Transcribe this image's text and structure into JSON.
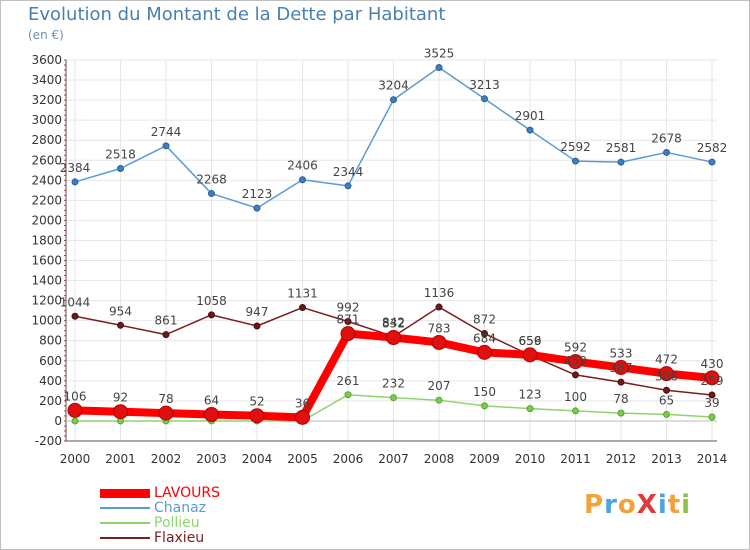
{
  "chart_data": {
    "type": "line",
    "title": "Evolution du Montant de la Dette par Habitant",
    "subtitle": "(en €)",
    "xlabel": "",
    "ylabel": "",
    "categories": [
      "2000",
      "2001",
      "2002",
      "2003",
      "2004",
      "2005",
      "2006",
      "2007",
      "2008",
      "2009",
      "2010",
      "2011",
      "2012",
      "2013",
      "2014"
    ],
    "ylim": [
      -200,
      3600
    ],
    "yticks": [
      -200,
      0,
      200,
      400,
      600,
      800,
      1000,
      1200,
      1400,
      1600,
      1800,
      2000,
      2200,
      2400,
      2600,
      2800,
      3000,
      3200,
      3400,
      3600
    ],
    "grid": true,
    "legend_position": "bottom-left",
    "series": [
      {
        "name": "LAVOURS",
        "color": "#ff0000",
        "values": [
          106,
          92,
          78,
          64,
          52,
          36,
          871,
          832,
          783,
          684,
          659,
          592,
          533,
          472,
          430
        ]
      },
      {
        "name": "Chanaz",
        "color": "#5b9bd5",
        "values": [
          2384,
          2518,
          2744,
          2268,
          2123,
          2406,
          2344,
          3204,
          3525,
          3213,
          2901,
          2592,
          2581,
          2678,
          2582
        ]
      },
      {
        "name": "Pollieu",
        "color": "#8fd46b",
        "values": [
          0,
          0,
          0,
          0,
          0,
          0,
          261,
          232,
          207,
          150,
          123,
          100,
          78,
          65,
          39
        ]
      },
      {
        "name": "Flaxieu",
        "color": "#7a1f1f",
        "values": [
          1044,
          954,
          861,
          1058,
          947,
          1131,
          992,
          842,
          1136,
          872,
          656,
          459,
          387,
          306,
          259
        ]
      }
    ],
    "labels": {
      "LAVOURS": [
        "106",
        "92",
        "78",
        "64",
        "52",
        "36",
        "871",
        "832",
        "783",
        "684",
        "659",
        "592",
        "533",
        "472",
        "430"
      ],
      "Chanaz": [
        "2384",
        "2518",
        "2744",
        "2268",
        "2123",
        "2406",
        "2344",
        "3204",
        "3525",
        "3213",
        "2901",
        "2592",
        "2581",
        "2678",
        "2582"
      ],
      "Pollieu": [
        "",
        "",
        "",
        "",
        "",
        "",
        "261",
        "232",
        "207",
        "150",
        "123",
        "100",
        "78",
        "65",
        "39"
      ],
      "Flaxieu": [
        "1044",
        "954",
        "861",
        "1058",
        "947",
        "1131",
        "992",
        "842",
        "1136",
        "872",
        "656",
        "459",
        "387",
        "306",
        "259"
      ]
    }
  },
  "logo": {
    "text": "ProXiti",
    "letter_colors": [
      "#f2a23a",
      "#4fa3dd",
      "#f2a23a",
      "#e03a3a",
      "#4fa3dd",
      "#f2a23a",
      "#8fc34a"
    ]
  }
}
